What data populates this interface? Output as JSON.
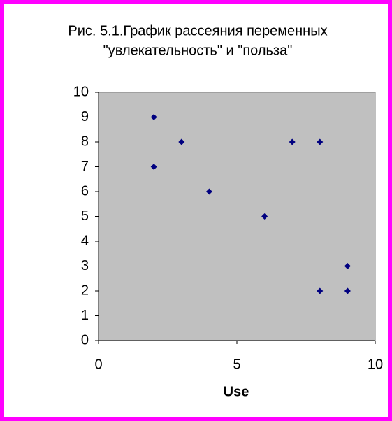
{
  "chart_data": {
    "type": "scatter",
    "title_lines": [
      "Рис. 5.1.График рассеяния переменных",
      "\"увлекательность\" и \"польза\""
    ],
    "x_label": "Use",
    "x": [
      2,
      2,
      3,
      4,
      6,
      7,
      8,
      8,
      9,
      9
    ],
    "series": [
      {
        "color": "#000080",
        "values": [
          9,
          7,
          8,
          6,
          5,
          8,
          8,
          2,
          3,
          2
        ]
      }
    ],
    "xlim": [
      0,
      10
    ],
    "xticks": [
      0,
      5,
      10
    ],
    "ylim": [
      0,
      10
    ],
    "yticks": [
      0,
      1,
      2,
      3,
      4,
      5,
      6,
      7,
      8,
      9,
      10
    ],
    "plot_background": "#c0c0c0",
    "grid": false
  }
}
